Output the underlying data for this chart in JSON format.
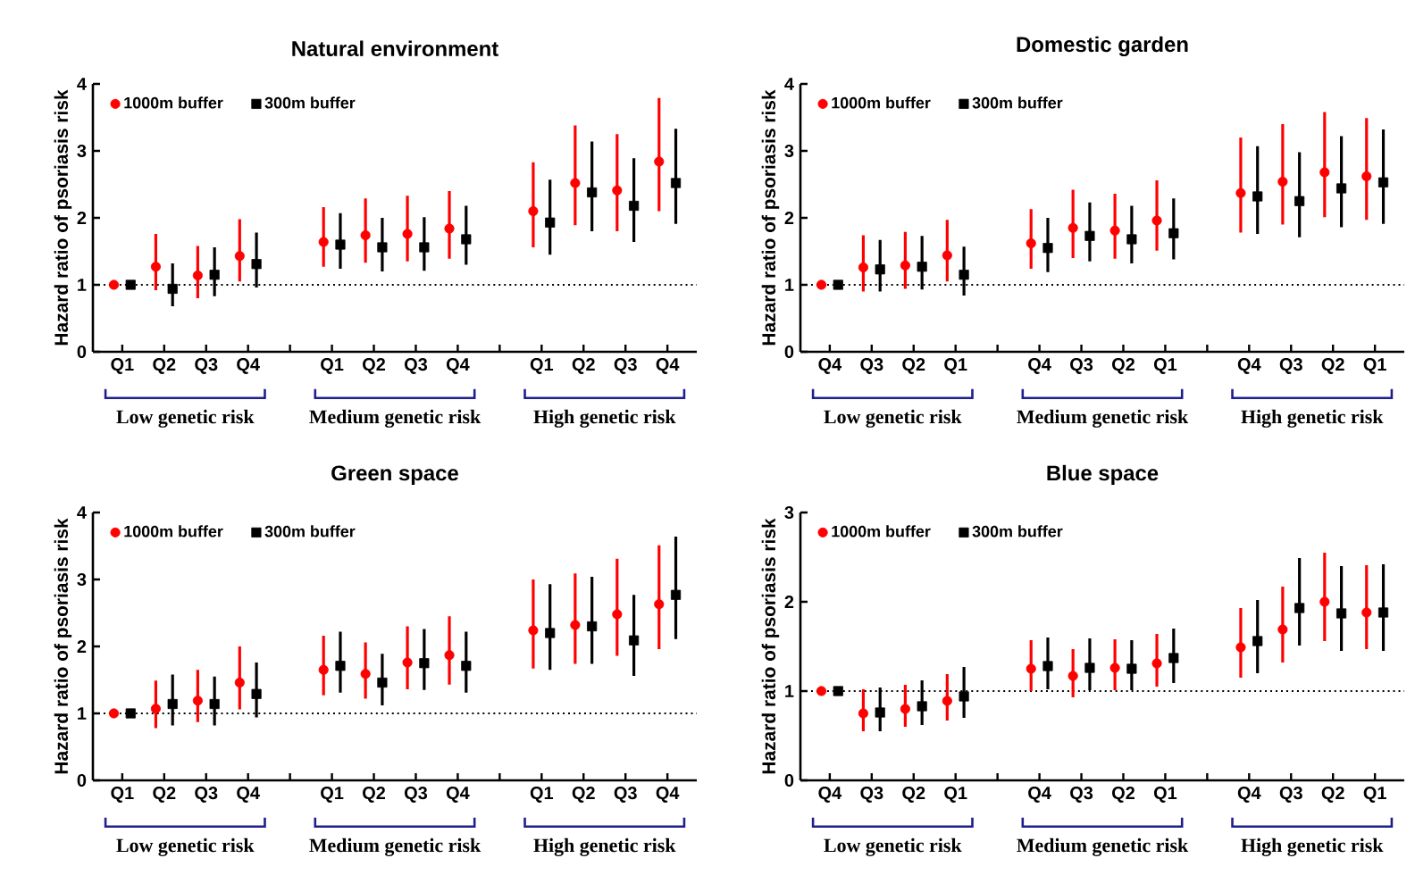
{
  "chart_data": [
    {
      "type": "scatter",
      "title": "Natural environment",
      "ylabel": "Hazard ratio of psoriasis risk",
      "categories": [
        "Q1",
        "Q2",
        "Q3",
        "Q4",
        null,
        "Q1",
        "Q2",
        "Q3",
        "Q4",
        null,
        "Q1",
        "Q2",
        "Q3",
        "Q4"
      ],
      "ylim": [
        0,
        4
      ],
      "yticks": [
        0,
        1,
        2,
        3,
        4
      ],
      "legend": "top left",
      "annotations": [
        "Low genetic risk",
        "Medium genetic risk",
        "High genetic risk"
      ],
      "ref_lines": [
        {
          "axis": "y",
          "value": 1,
          "line_style": "dotted"
        }
      ],
      "series": [
        {
          "name": "1000m buffer",
          "color": "#ff0000",
          "marker": "circle",
          "values": [
            1.0,
            1.27,
            1.14,
            1.43,
            null,
            1.64,
            1.74,
            1.76,
            1.84,
            null,
            2.1,
            2.52,
            2.41,
            2.84
          ],
          "errors": [
            null,
            [
              0.92,
              1.76
            ],
            [
              0.8,
              1.58
            ],
            [
              1.05,
              1.98
            ],
            null,
            [
              1.27,
              2.16
            ],
            [
              1.33,
              2.29
            ],
            [
              1.35,
              2.33
            ],
            [
              1.39,
              2.4
            ],
            null,
            [
              1.56,
              2.83
            ],
            [
              1.89,
              3.38
            ],
            [
              1.8,
              3.25
            ],
            [
              2.1,
              3.79
            ]
          ]
        },
        {
          "name": "300m buffer",
          "color": "#000000",
          "marker": "square",
          "values": [
            1.0,
            0.94,
            1.15,
            1.31,
            null,
            1.6,
            1.56,
            1.56,
            1.68,
            null,
            1.93,
            2.38,
            2.18,
            2.52
          ],
          "errors": [
            null,
            [
              0.68,
              1.32
            ],
            [
              0.83,
              1.56
            ],
            [
              0.96,
              1.78
            ],
            null,
            [
              1.24,
              2.07
            ],
            [
              1.2,
              2.0
            ],
            [
              1.21,
              2.01
            ],
            [
              1.3,
              2.18
            ],
            null,
            [
              1.45,
              2.57
            ],
            [
              1.8,
              3.14
            ],
            [
              1.64,
              2.89
            ],
            [
              1.91,
              3.33
            ]
          ]
        }
      ]
    },
    {
      "type": "scatter",
      "title": "Domestic garden",
      "ylabel": "Hazard ratio of psoriasis risk",
      "categories": [
        "Q4",
        "Q3",
        "Q2",
        "Q1",
        null,
        "Q4",
        "Q3",
        "Q2",
        "Q1",
        null,
        "Q4",
        "Q3",
        "Q2",
        "Q1"
      ],
      "ylim": [
        0,
        4
      ],
      "yticks": [
        0,
        1,
        2,
        3,
        4
      ],
      "legend": "top left",
      "annotations": [
        "Low genetic risk",
        "Medium genetic risk",
        "High genetic risk"
      ],
      "ref_lines": [
        {
          "axis": "y",
          "value": 1,
          "line_style": "dotted"
        }
      ],
      "series": [
        {
          "name": "1000m buffer",
          "color": "#ff0000",
          "marker": "circle",
          "values": [
            1.0,
            1.26,
            1.29,
            1.44,
            null,
            1.62,
            1.85,
            1.81,
            1.96,
            null,
            2.37,
            2.54,
            2.68,
            2.62
          ],
          "errors": [
            null,
            [
              0.9,
              1.74
            ],
            [
              0.94,
              1.79
            ],
            [
              1.05,
              1.97
            ],
            null,
            [
              1.24,
              2.13
            ],
            [
              1.4,
              2.42
            ],
            [
              1.39,
              2.36
            ],
            [
              1.51,
              2.56
            ],
            null,
            [
              1.78,
              3.2
            ],
            [
              1.9,
              3.4
            ],
            [
              2.01,
              3.58
            ],
            [
              1.97,
              3.49
            ]
          ]
        },
        {
          "name": "300m buffer",
          "color": "#000000",
          "marker": "square",
          "values": [
            1.0,
            1.23,
            1.27,
            1.15,
            null,
            1.55,
            1.73,
            1.68,
            1.77,
            null,
            2.32,
            2.25,
            2.44,
            2.53
          ],
          "errors": [
            null,
            [
              0.9,
              1.67
            ],
            [
              0.93,
              1.73
            ],
            [
              0.84,
              1.57
            ],
            null,
            [
              1.19,
              2.0
            ],
            [
              1.35,
              2.23
            ],
            [
              1.32,
              2.18
            ],
            [
              1.38,
              2.29
            ],
            null,
            [
              1.76,
              3.07
            ],
            [
              1.71,
              2.98
            ],
            [
              1.86,
              3.22
            ],
            [
              1.91,
              3.32
            ]
          ]
        }
      ]
    },
    {
      "type": "scatter",
      "title": "Green space",
      "ylabel": "Hazard ratio of psoriasis risk",
      "categories": [
        "Q1",
        "Q2",
        "Q3",
        "Q4",
        null,
        "Q1",
        "Q2",
        "Q3",
        "Q4",
        null,
        "Q1",
        "Q2",
        "Q3",
        "Q4"
      ],
      "ylim": [
        0,
        4
      ],
      "yticks": [
        0,
        1,
        2,
        3,
        4
      ],
      "legend": "top left",
      "annotations": [
        "Low genetic risk",
        "Medium genetic risk",
        "High genetic risk"
      ],
      "ref_lines": [
        {
          "axis": "y",
          "value": 1,
          "line_style": "dotted"
        }
      ],
      "series": [
        {
          "name": "1000m buffer",
          "color": "#ff0000",
          "marker": "circle",
          "values": [
            1.0,
            1.07,
            1.19,
            1.46,
            null,
            1.65,
            1.59,
            1.76,
            1.87,
            null,
            2.24,
            2.32,
            2.48,
            2.63
          ],
          "errors": [
            null,
            [
              0.78,
              1.49
            ],
            [
              0.87,
              1.65
            ],
            [
              1.06,
              2.0
            ],
            null,
            [
              1.27,
              2.16
            ],
            [
              1.22,
              2.06
            ],
            [
              1.36,
              2.3
            ],
            [
              1.43,
              2.45
            ],
            null,
            [
              1.67,
              3.0
            ],
            [
              1.74,
              3.09
            ],
            [
              1.86,
              3.31
            ],
            [
              1.96,
              3.51
            ]
          ]
        },
        {
          "name": "300m buffer",
          "color": "#000000",
          "marker": "square",
          "values": [
            1.0,
            1.14,
            1.14,
            1.29,
            null,
            1.71,
            1.46,
            1.75,
            1.71,
            null,
            2.2,
            2.3,
            2.09,
            2.77
          ],
          "errors": [
            null,
            [
              0.82,
              1.58
            ],
            [
              0.82,
              1.55
            ],
            [
              0.94,
              1.76
            ],
            null,
            [
              1.31,
              2.22
            ],
            [
              1.12,
              1.89
            ],
            [
              1.35,
              2.26
            ],
            [
              1.31,
              2.22
            ],
            null,
            [
              1.65,
              2.93
            ],
            [
              1.74,
              3.04
            ],
            [
              1.56,
              2.77
            ],
            [
              2.11,
              3.64
            ]
          ]
        }
      ]
    },
    {
      "type": "scatter",
      "title": "Blue space",
      "ylabel": "Hazard ratio of psoriasis risk",
      "categories": [
        "Q4",
        "Q3",
        "Q2",
        "Q1",
        null,
        "Q4",
        "Q3",
        "Q2",
        "Q1",
        null,
        "Q4",
        "Q3",
        "Q2",
        "Q1"
      ],
      "ylim": [
        0,
        3
      ],
      "yticks": [
        0,
        1,
        2,
        3
      ],
      "legend": "top left",
      "annotations": [
        "Low genetic risk",
        "Medium genetic risk",
        "High genetic risk"
      ],
      "ref_lines": [
        {
          "axis": "y",
          "value": 1,
          "line_style": "dotted"
        }
      ],
      "series": [
        {
          "name": "1000m buffer",
          "color": "#ff0000",
          "marker": "circle",
          "values": [
            1.0,
            0.75,
            0.8,
            0.89,
            null,
            1.25,
            1.17,
            1.26,
            1.31,
            null,
            1.49,
            1.69,
            2.0,
            1.88
          ],
          "errors": [
            null,
            [
              0.55,
              1.02
            ],
            [
              0.6,
              1.07
            ],
            [
              0.67,
              1.19
            ],
            null,
            [
              1.0,
              1.57
            ],
            [
              0.93,
              1.47
            ],
            [
              1.01,
              1.58
            ],
            [
              1.05,
              1.64
            ],
            null,
            [
              1.15,
              1.93
            ],
            [
              1.32,
              2.17
            ],
            [
              1.56,
              2.55
            ],
            [
              1.47,
              2.41
            ]
          ]
        },
        {
          "name": "300m buffer",
          "color": "#000000",
          "marker": "square",
          "values": [
            1.0,
            0.76,
            0.83,
            0.94,
            null,
            1.28,
            1.26,
            1.25,
            1.37,
            null,
            1.56,
            1.93,
            1.87,
            1.88
          ],
          "errors": [
            null,
            [
              0.55,
              1.04
            ],
            [
              0.62,
              1.12
            ],
            [
              0.7,
              1.27
            ],
            null,
            [
              1.02,
              1.6
            ],
            [
              1.01,
              1.59
            ],
            [
              1.01,
              1.57
            ],
            [
              1.09,
              1.7
            ],
            null,
            [
              1.2,
              2.02
            ],
            [
              1.51,
              2.49
            ],
            [
              1.45,
              2.4
            ],
            [
              1.45,
              2.42
            ]
          ]
        }
      ]
    }
  ]
}
